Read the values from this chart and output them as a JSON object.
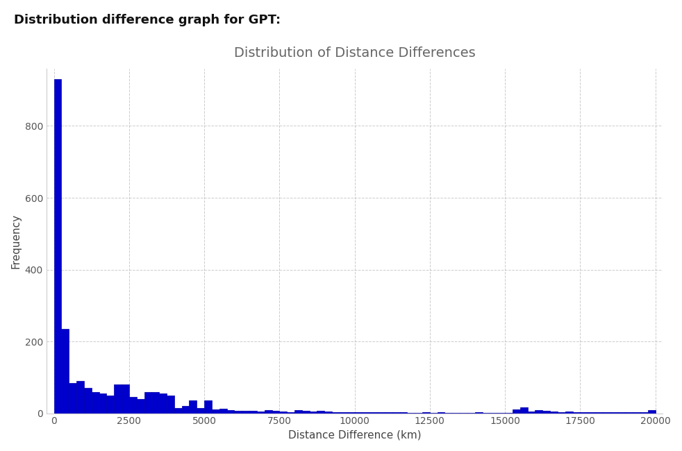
{
  "title": "Distribution of Distance Differences",
  "xlabel": "Distance Difference (km)",
  "ylabel": "Frequency",
  "suptitle": "Distribution difference graph for GPT:",
  "bar_color": "#0000CC",
  "bar_edgecolor": "#0000AA",
  "background_color": "#ffffff",
  "grid_color": "#aaaaaa",
  "xlim": [
    -250,
    20250
  ],
  "ylim": [
    0,
    960
  ],
  "xticks": [
    0,
    2500,
    5000,
    7500,
    10000,
    12500,
    15000,
    17500,
    20000
  ],
  "yticks": [
    0,
    200,
    400,
    600,
    800
  ],
  "bin_width": 250,
  "bar_heights": [
    930,
    235,
    85,
    90,
    70,
    60,
    55,
    50,
    80,
    80,
    45,
    40,
    60,
    60,
    55,
    50,
    15,
    20,
    35,
    15,
    35,
    10,
    12,
    8,
    6,
    7,
    6,
    5,
    8,
    6,
    5,
    4,
    8,
    6,
    5,
    6,
    5,
    4,
    3,
    4,
    3,
    3,
    4,
    3,
    4,
    3,
    3,
    2,
    2,
    3,
    2,
    3,
    2,
    2,
    2,
    2,
    3,
    2,
    2,
    2,
    2,
    10,
    17,
    5,
    8,
    6,
    5,
    4,
    5,
    4,
    3,
    3,
    4,
    3,
    3,
    3,
    3,
    3,
    3,
    8
  ],
  "title_fontsize": 14,
  "axis_label_fontsize": 11,
  "tick_fontsize": 10,
  "suptitle_fontsize": 13,
  "title_color": "#666666",
  "tick_color": "#555555",
  "axis_label_color": "#444444",
  "suptitle_color": "#111111"
}
